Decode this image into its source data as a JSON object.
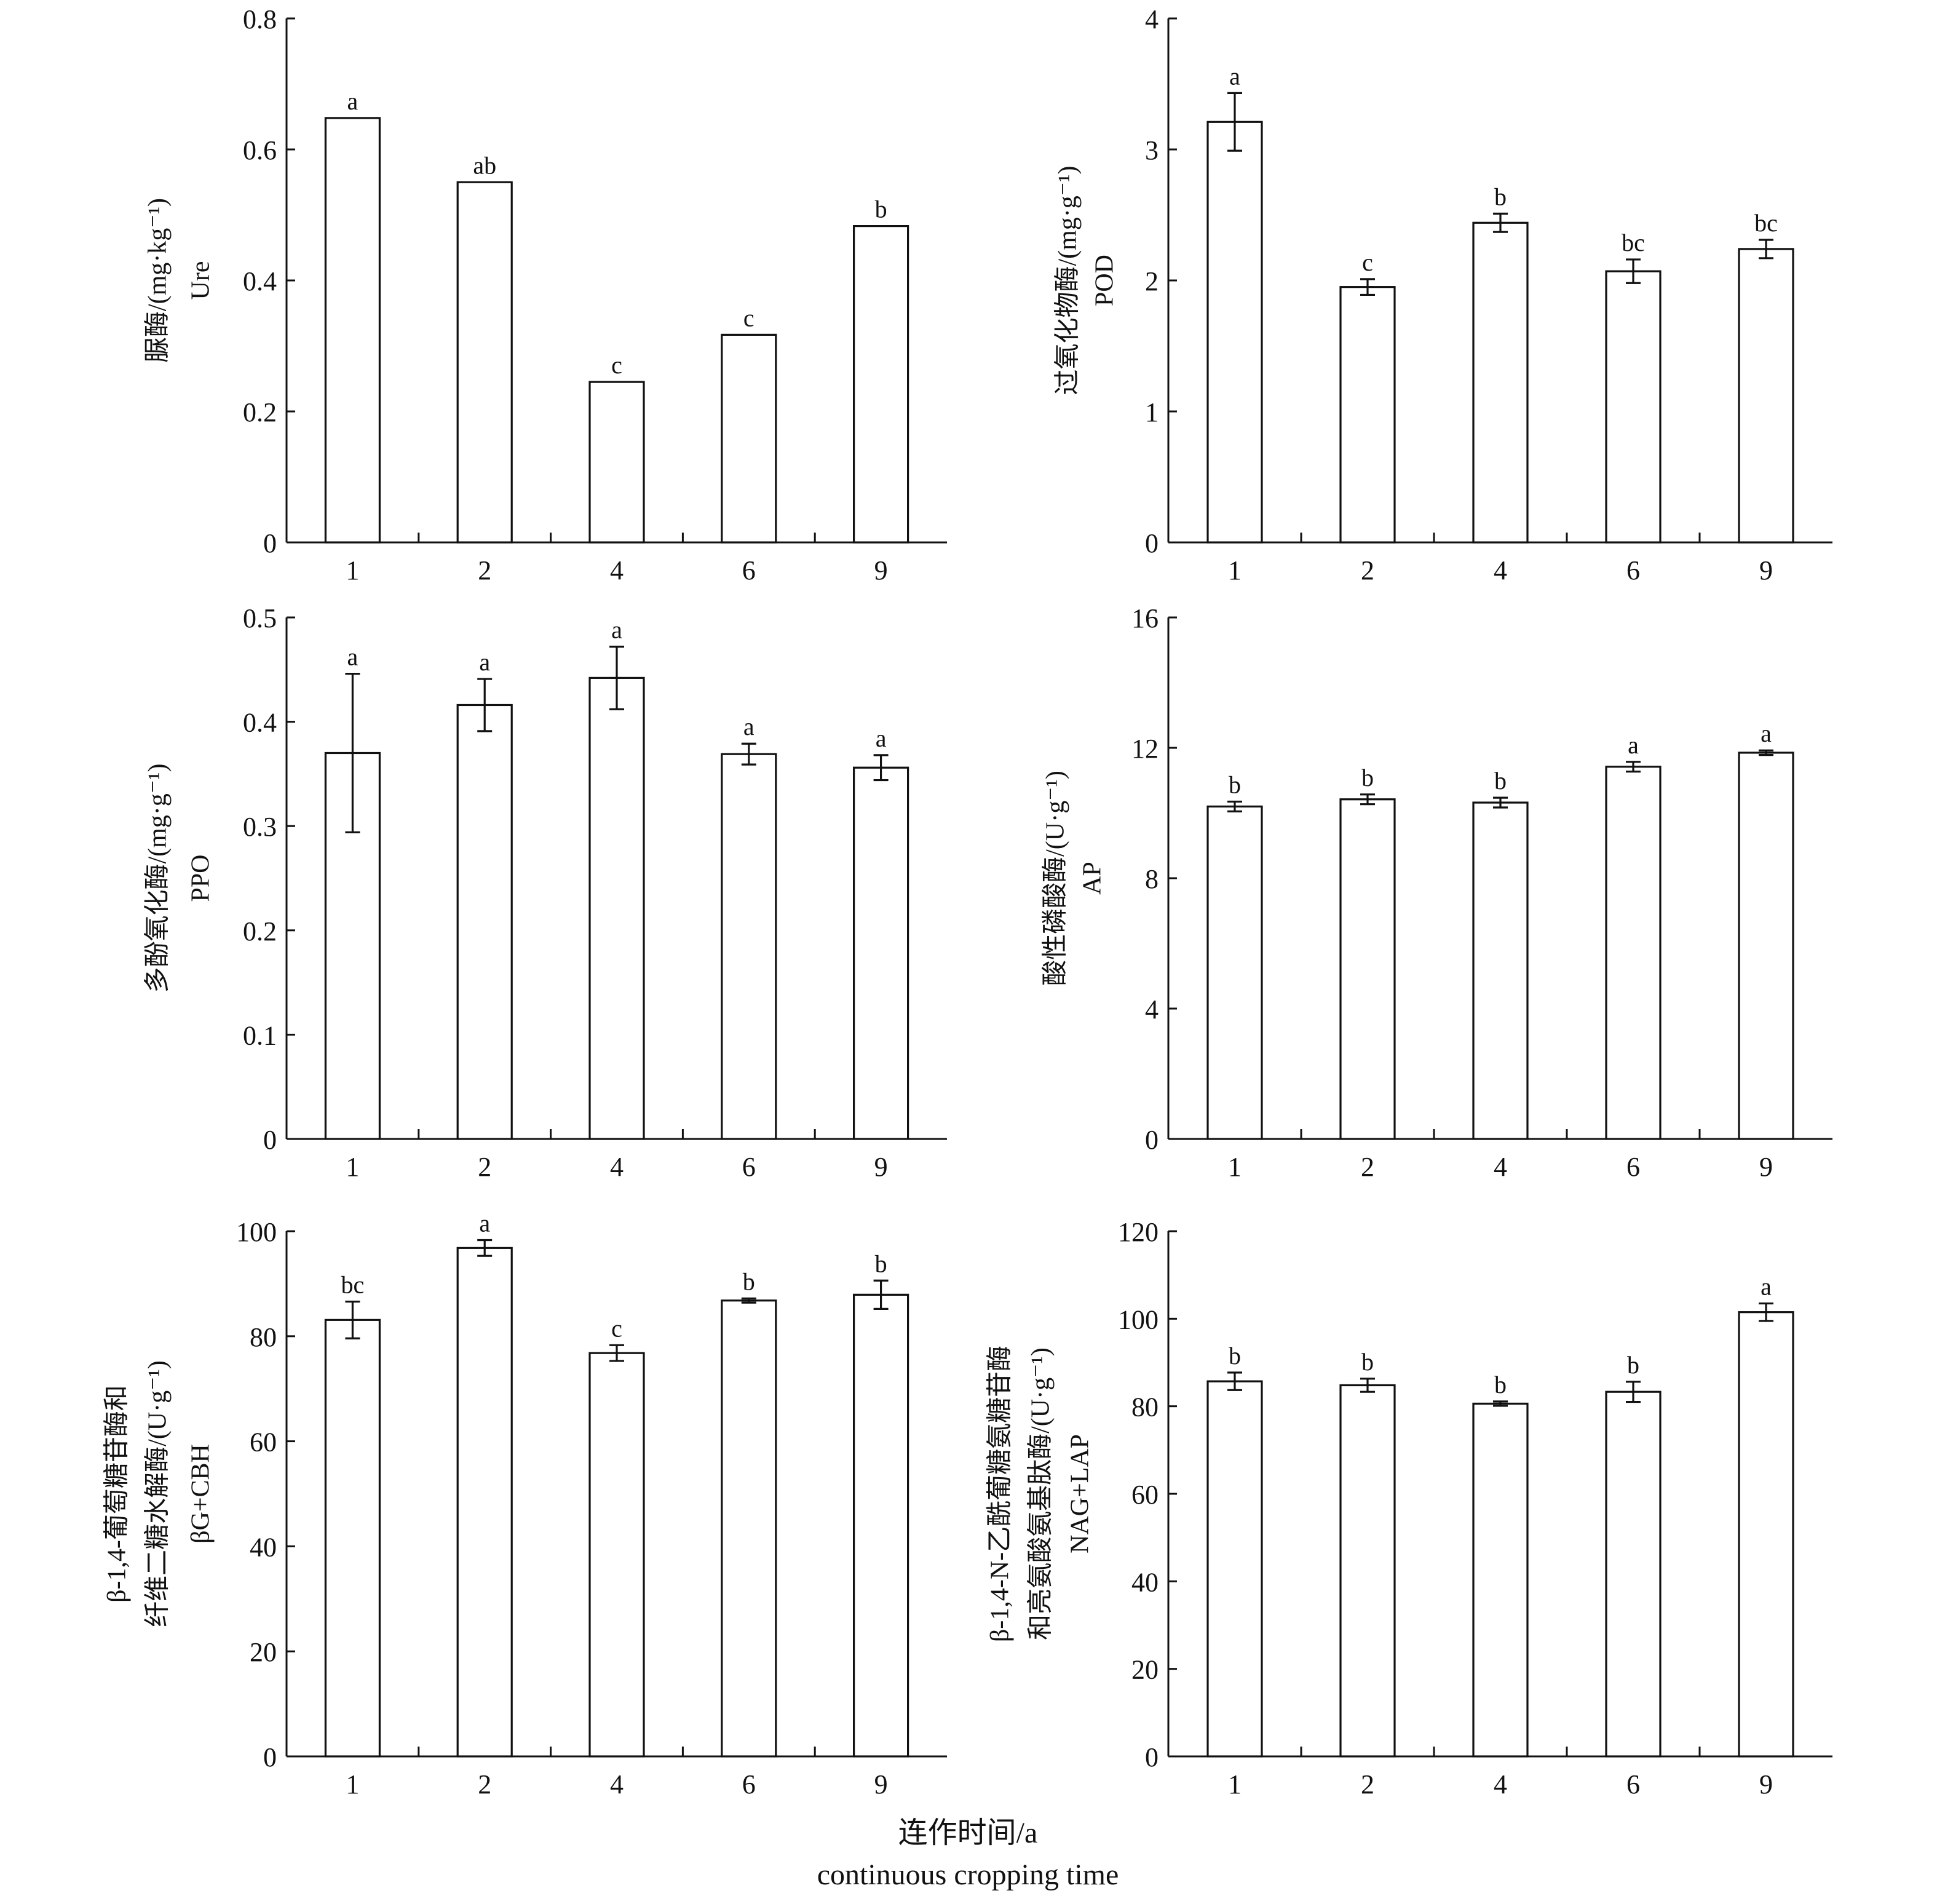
{
  "chart_data": [
    {
      "type": "bar",
      "categories": [
        "1",
        "2",
        "4",
        "6",
        "9"
      ],
      "ylim": [
        0,
        0.8
      ],
      "yticks": [
        "0",
        "0.2",
        "0.4",
        "0.6",
        "0.8"
      ],
      "ylabel": [
        "脲酶/(mg·kg⁻¹)",
        "Ure"
      ],
      "values": [
        0.648,
        0.55,
        0.245,
        0.317,
        0.483
      ],
      "errors": [
        0,
        0,
        0,
        0,
        0
      ],
      "letters": [
        "a",
        "ab",
        "c",
        "c",
        "b"
      ]
    },
    {
      "type": "bar",
      "categories": [
        "1",
        "2",
        "4",
        "6",
        "9"
      ],
      "ylim": [
        0,
        4
      ],
      "yticks": [
        "0",
        "1",
        "2",
        "3",
        "4"
      ],
      "ylabel": [
        "过氧化物酶/(mg·g⁻¹)",
        "POD"
      ],
      "values": [
        3.21,
        1.95,
        2.44,
        2.07,
        2.24
      ],
      "errors": [
        0.22,
        0.06,
        0.07,
        0.09,
        0.07
      ],
      "letters": [
        "a",
        "c",
        "b",
        "bc",
        "bc"
      ]
    },
    {
      "type": "bar",
      "categories": [
        "1",
        "2",
        "4",
        "6",
        "9"
      ],
      "ylim": [
        0,
        0.5
      ],
      "yticks": [
        "0",
        "0.1",
        "0.2",
        "0.3",
        "0.4",
        "0.5"
      ],
      "ylabel": [
        "多酚氧化酶/(mg·g⁻¹)",
        "PPO"
      ],
      "values": [
        0.37,
        0.416,
        0.442,
        0.369,
        0.356
      ],
      "errors": [
        0.076,
        0.025,
        0.03,
        0.01,
        0.012
      ],
      "letters": [
        "a",
        "a",
        "a",
        "a",
        "a"
      ]
    },
    {
      "type": "bar",
      "categories": [
        "1",
        "2",
        "4",
        "6",
        "9"
      ],
      "ylim": [
        0,
        16
      ],
      "yticks": [
        "0",
        "4",
        "8",
        "12",
        "16"
      ],
      "ylabel": [
        "酸性磷酸酶/(U·g⁻¹)",
        "AP"
      ],
      "values": [
        10.2,
        10.42,
        10.32,
        11.42,
        11.85
      ],
      "errors": [
        0.15,
        0.15,
        0.15,
        0.15,
        0.07
      ],
      "letters": [
        "b",
        "b",
        "b",
        "a",
        "a"
      ]
    },
    {
      "type": "bar",
      "categories": [
        "1",
        "2",
        "4",
        "6",
        "9"
      ],
      "ylim": [
        0,
        100
      ],
      "yticks": [
        "0",
        "20",
        "40",
        "60",
        "80",
        "100"
      ],
      "ylabel": [
        "β-1,4-葡萄糖苷酶和",
        "纤维二糖水解酶/(U·g⁻¹)",
        "βG+CBH"
      ],
      "values": [
        83.1,
        96.8,
        76.8,
        86.8,
        87.9
      ],
      "errors": [
        3.5,
        1.5,
        1.5,
        0.4,
        2.7
      ],
      "letters": [
        "bc",
        "a",
        "c",
        "b",
        "b"
      ]
    },
    {
      "type": "bar",
      "categories": [
        "1",
        "2",
        "4",
        "6",
        "9"
      ],
      "ylim": [
        0,
        120
      ],
      "yticks": [
        "0",
        "20",
        "40",
        "60",
        "80",
        "100",
        "120"
      ],
      "ylabel": [
        "β-1,4-N-乙酰葡糖氨糖苷酶",
        "和亮氨酸氨基肽酶/(U·g⁻¹)",
        "NAG+LAP"
      ],
      "values": [
        85.7,
        84.8,
        80.6,
        83.3,
        101.5
      ],
      "errors": [
        2.0,
        1.5,
        0.5,
        2.3,
        2.0
      ],
      "letters": [
        "b",
        "b",
        "b",
        "b",
        "a"
      ]
    }
  ],
  "xlabel": [
    "连作时间/a",
    "continuous cropping time"
  ],
  "colors": {
    "bar_fill": "#ffffff",
    "stroke": "#111111"
  }
}
